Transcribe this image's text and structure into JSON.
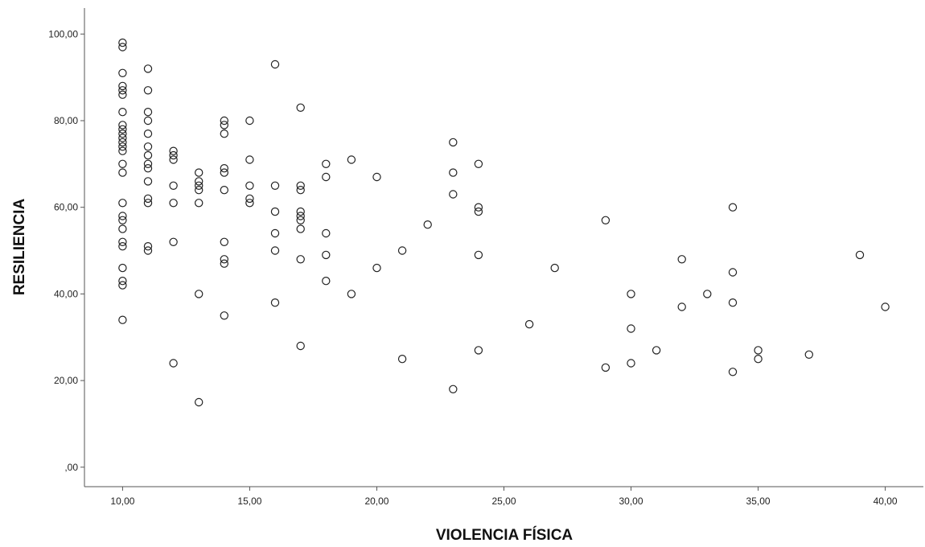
{
  "chart_data": {
    "type": "scatter",
    "title": "",
    "xlabel": "VIOLENCIA FÍSICA",
    "ylabel": "RESILIENCIA",
    "xlim": [
      8.5,
      41.5
    ],
    "ylim": [
      -4.5,
      106
    ],
    "grid": false,
    "x_ticks": [
      {
        "value": 10,
        "label": "10,00"
      },
      {
        "value": 15,
        "label": "15,00"
      },
      {
        "value": 20,
        "label": "20,00"
      },
      {
        "value": 25,
        "label": "25,00"
      },
      {
        "value": 30,
        "label": "30,00"
      },
      {
        "value": 35,
        "label": "35,00"
      },
      {
        "value": 40,
        "label": "40,00"
      }
    ],
    "y_ticks": [
      {
        "value": 0,
        "label": ",00"
      },
      {
        "value": 20,
        "label": "20,00"
      },
      {
        "value": 40,
        "label": "40,00"
      },
      {
        "value": 60,
        "label": "60,00"
      },
      {
        "value": 80,
        "label": "80,00"
      },
      {
        "value": 100,
        "label": "100,00"
      }
    ],
    "points": [
      [
        10,
        98
      ],
      [
        10,
        97
      ],
      [
        10,
        91
      ],
      [
        10,
        88
      ],
      [
        10,
        87
      ],
      [
        10,
        86
      ],
      [
        10,
        82
      ],
      [
        10,
        79
      ],
      [
        10,
        78
      ],
      [
        10,
        77
      ],
      [
        10,
        76
      ],
      [
        10,
        75
      ],
      [
        10,
        74
      ],
      [
        10,
        73
      ],
      [
        10,
        70
      ],
      [
        10,
        68
      ],
      [
        10,
        61
      ],
      [
        10,
        58
      ],
      [
        10,
        57
      ],
      [
        10,
        55
      ],
      [
        10,
        52
      ],
      [
        10,
        51
      ],
      [
        10,
        46
      ],
      [
        10,
        43
      ],
      [
        10,
        42
      ],
      [
        10,
        34
      ],
      [
        11,
        92
      ],
      [
        11,
        87
      ],
      [
        11,
        82
      ],
      [
        11,
        80
      ],
      [
        11,
        77
      ],
      [
        11,
        74
      ],
      [
        11,
        72
      ],
      [
        11,
        70
      ],
      [
        11,
        69
      ],
      [
        11,
        66
      ],
      [
        11,
        62
      ],
      [
        11,
        61
      ],
      [
        11,
        51
      ],
      [
        11,
        50
      ],
      [
        12,
        73
      ],
      [
        12,
        72
      ],
      [
        12,
        71
      ],
      [
        12,
        65
      ],
      [
        12,
        61
      ],
      [
        12,
        52
      ],
      [
        12,
        24
      ],
      [
        13,
        68
      ],
      [
        13,
        66
      ],
      [
        13,
        65
      ],
      [
        13,
        64
      ],
      [
        13,
        61
      ],
      [
        13,
        40
      ],
      [
        13,
        15
      ],
      [
        14,
        80
      ],
      [
        14,
        79
      ],
      [
        14,
        77
      ],
      [
        14,
        69
      ],
      [
        14,
        68
      ],
      [
        14,
        64
      ],
      [
        14,
        52
      ],
      [
        14,
        48
      ],
      [
        14,
        47
      ],
      [
        14,
        35
      ],
      [
        15,
        80
      ],
      [
        15,
        71
      ],
      [
        15,
        65
      ],
      [
        15,
        62
      ],
      [
        15,
        61
      ],
      [
        16,
        93
      ],
      [
        16,
        65
      ],
      [
        16,
        59
      ],
      [
        16,
        54
      ],
      [
        16,
        50
      ],
      [
        16,
        38
      ],
      [
        17,
        83
      ],
      [
        17,
        65
      ],
      [
        17,
        64
      ],
      [
        17,
        59
      ],
      [
        17,
        58
      ],
      [
        17,
        57
      ],
      [
        17,
        55
      ],
      [
        17,
        48
      ],
      [
        17,
        28
      ],
      [
        18,
        70
      ],
      [
        18,
        67
      ],
      [
        18,
        54
      ],
      [
        18,
        49
      ],
      [
        18,
        43
      ],
      [
        19,
        71
      ],
      [
        19,
        40
      ],
      [
        20,
        67
      ],
      [
        20,
        46
      ],
      [
        21,
        50
      ],
      [
        21,
        25
      ],
      [
        22,
        56
      ],
      [
        23,
        75
      ],
      [
        23,
        68
      ],
      [
        23,
        63
      ],
      [
        23,
        18
      ],
      [
        24,
        70
      ],
      [
        24,
        60
      ],
      [
        24,
        59
      ],
      [
        24,
        49
      ],
      [
        24,
        27
      ],
      [
        26,
        33
      ],
      [
        27,
        46
      ],
      [
        29,
        57
      ],
      [
        29,
        23
      ],
      [
        30,
        40
      ],
      [
        30,
        32
      ],
      [
        30,
        24
      ],
      [
        31,
        27
      ],
      [
        32,
        48
      ],
      [
        32,
        37
      ],
      [
        33,
        40
      ],
      [
        34,
        60
      ],
      [
        34,
        45
      ],
      [
        34,
        38
      ],
      [
        34,
        22
      ],
      [
        35,
        27
      ],
      [
        35,
        25
      ],
      [
        37,
        26
      ],
      [
        39,
        49
      ],
      [
        40,
        37
      ]
    ]
  }
}
